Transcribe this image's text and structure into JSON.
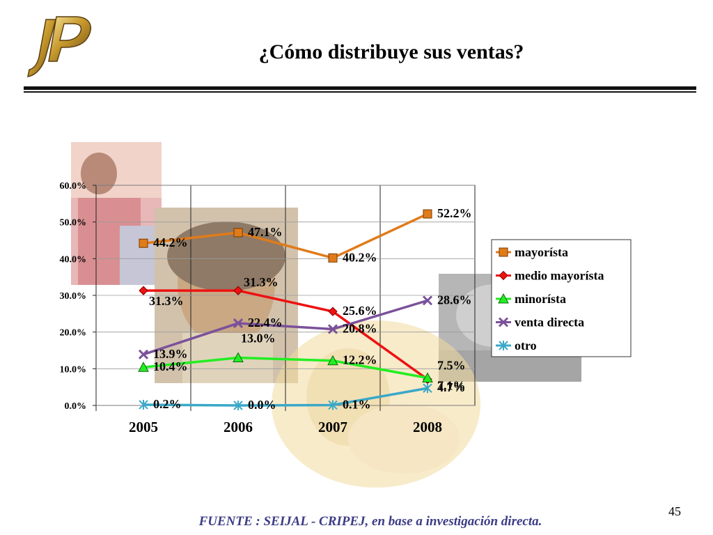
{
  "slide": {
    "title": "¿Cómo distribuye sus ventas?",
    "source": "FUENTE :  SEIJAL - CRIPEJ,  en base a investigación directa.",
    "page_number": "45"
  },
  "colors": {
    "mayorista": "#e07b1a",
    "medio_mayorista": "#ee1111",
    "minorista": "#22ee22",
    "venta_directa": "#7b519a",
    "otro": "#3aa8c8",
    "source_text": "#3b3b86"
  },
  "chart_data": {
    "type": "line",
    "categories": [
      "2005",
      "2006",
      "2007",
      "2008"
    ],
    "ylim": [
      0,
      60
    ],
    "yticks": [
      "0.0%",
      "10.0%",
      "20.0%",
      "30.0%",
      "40.0%",
      "50.0%",
      "60.0%"
    ],
    "grid": true,
    "legend_position": "right",
    "series": [
      {
        "name": "mayorísta",
        "marker": "square",
        "values": [
          44.2,
          47.1,
          40.2,
          52.2
        ],
        "labels": [
          "44.2%",
          "47.1%",
          "40.2%",
          "52.2%"
        ]
      },
      {
        "name": "medio mayorísta",
        "marker": "diamond",
        "values": [
          31.3,
          31.3,
          25.6,
          7.1
        ],
        "labels": [
          "31.3%",
          "31.3%",
          "25.6%",
          "7.1%"
        ]
      },
      {
        "name": "minorísta",
        "marker": "triangle",
        "values": [
          10.4,
          13.0,
          12.2,
          7.5
        ],
        "labels": [
          "10.4%",
          "13.0%",
          "12.2%",
          "7.5%"
        ]
      },
      {
        "name": "venta directa",
        "marker": "x",
        "values": [
          13.9,
          22.4,
          20.8,
          28.6
        ],
        "labels": [
          "13.9%",
          "22.4%",
          "20.8%",
          "28.6%"
        ]
      },
      {
        "name": "otro",
        "marker": "star",
        "values": [
          0.2,
          0.0,
          0.1,
          4.7
        ],
        "labels": [
          "0.2%",
          "0.0%",
          "0.1%",
          "4.7%"
        ]
      }
    ]
  }
}
